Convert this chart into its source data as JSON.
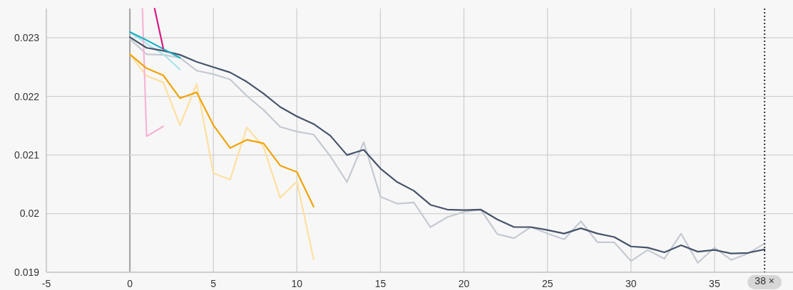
{
  "chart_data": {
    "type": "line",
    "xlim": [
      -5,
      39.7
    ],
    "ylim": [
      0.019,
      0.0235
    ],
    "xticks": [
      -5,
      0,
      5,
      10,
      15,
      20,
      25,
      30,
      35
    ],
    "yticks": [
      0.019,
      0.02,
      0.021,
      0.022,
      0.023
    ],
    "grid": true,
    "marker": "none",
    "line_style": "solid",
    "ref_lines": [
      {
        "axis": "x",
        "value": 38,
        "label": "38 ×",
        "color": "#333333",
        "line_style": "dotted"
      }
    ],
    "series": [
      {
        "color": "#c5cad3",
        "x": [
          0,
          1,
          2,
          3,
          4,
          5,
          6,
          7,
          8,
          9,
          10,
          11,
          12,
          13,
          14,
          15,
          16,
          17,
          18,
          19,
          20,
          21,
          22,
          23,
          24,
          25,
          26,
          27,
          28,
          29,
          30,
          31,
          32,
          33,
          34,
          35,
          36,
          37,
          38
        ],
        "values": [
          0.02298,
          0.02272,
          0.02271,
          0.02266,
          0.02244,
          0.02238,
          0.02229,
          0.02201,
          0.02177,
          0.02148,
          0.0214,
          0.02135,
          0.02098,
          0.02054,
          0.02122,
          0.02029,
          0.02017,
          0.02019,
          0.01977,
          0.01994,
          0.02003,
          0.02007,
          0.01965,
          0.01958,
          0.01977,
          0.01966,
          0.01956,
          0.01987,
          0.01951,
          0.01951,
          0.01919,
          0.01938,
          0.01923,
          0.01966,
          0.01916,
          0.01942,
          0.01921,
          0.01932,
          0.01949
        ]
      },
      {
        "color": "#fde0a0",
        "x": [
          0,
          1,
          2,
          3,
          4,
          5,
          6,
          7,
          8,
          9,
          10,
          11
        ],
        "values": [
          0.02272,
          0.02235,
          0.02224,
          0.02151,
          0.02221,
          0.02069,
          0.02058,
          0.02147,
          0.02114,
          0.02027,
          0.02055,
          0.01922
        ]
      },
      {
        "color": "#a8e3ea",
        "x": [
          0,
          1,
          2,
          3
        ],
        "values": [
          0.0231,
          0.0229,
          0.02272,
          0.02246
        ]
      },
      {
        "color": "#f5b5d5",
        "x": [
          0.75,
          1,
          2
        ],
        "values": [
          0.0235,
          0.02132,
          0.02149
        ]
      },
      {
        "color": "#46536a",
        "x": [
          0,
          1,
          2,
          3,
          4,
          5,
          6,
          7,
          8,
          9,
          10,
          11,
          12,
          13,
          14,
          15,
          16,
          17,
          18,
          19,
          20,
          21,
          22,
          23,
          24,
          25,
          26,
          27,
          28,
          29,
          30,
          31,
          32,
          33,
          34,
          35,
          36,
          37,
          38
        ],
        "values": [
          0.02301,
          0.02283,
          0.02278,
          0.02271,
          0.02259,
          0.0225,
          0.02241,
          0.02225,
          0.02205,
          0.02182,
          0.02166,
          0.02153,
          0.02133,
          0.021,
          0.02109,
          0.02077,
          0.02054,
          0.02039,
          0.02015,
          0.02007,
          0.02006,
          0.02007,
          0.0199,
          0.01977,
          0.01977,
          0.01972,
          0.01966,
          0.01975,
          0.01966,
          0.0196,
          0.01944,
          0.01942,
          0.01934,
          0.01946,
          0.01935,
          0.01938,
          0.01932,
          0.01933,
          0.01939
        ]
      },
      {
        "color": "#f0a30a",
        "x": [
          0,
          1,
          2,
          3,
          4,
          5,
          6,
          7,
          8,
          9,
          10,
          11
        ],
        "values": [
          0.02272,
          0.02248,
          0.02236,
          0.02197,
          0.02207,
          0.02151,
          0.02112,
          0.02126,
          0.0212,
          0.02082,
          0.02071,
          0.02012
        ]
      },
      {
        "color": "#1eb0c4",
        "x": [
          0,
          1,
          2,
          3
        ],
        "values": [
          0.0231,
          0.02296,
          0.02281,
          0.02266
        ]
      },
      {
        "color": "#d81b84",
        "x": [
          1.48,
          2
        ],
        "values": [
          0.0235,
          0.02282
        ]
      }
    ]
  }
}
